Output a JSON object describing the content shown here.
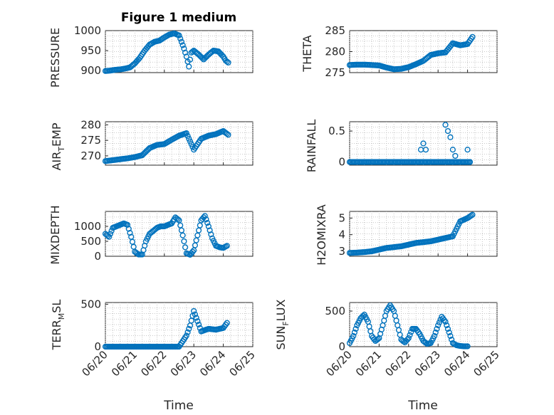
{
  "chart_data": [
    {
      "type": "scatter",
      "id": "pressure",
      "title": "Figure 1 medium",
      "ylabel": "PRESSURE",
      "ylim": [
        895,
        1000
      ],
      "yticks": [
        900,
        950,
        1000
      ],
      "ytick_labels": [
        "900",
        "950",
        "1000"
      ],
      "xlim": [
        "06/20",
        "06/24.2"
      ],
      "grid": true,
      "color": "#0072BD",
      "x": [
        "06/20 00:00",
        "06/20 04:00",
        "06/20 08:00",
        "06/20 12:00",
        "06/20 16:00",
        "06/20 20:00",
        "06/21 00:00",
        "06/21 04:00",
        "06/21 08:00",
        "06/21 12:00",
        "06/21 16:00",
        "06/21 20:00",
        "06/22 00:00",
        "06/22 04:00",
        "06/22 08:00",
        "06/22 12:00",
        "06/22 14:00",
        "06/22 16:00",
        "06/22 18:00",
        "06/22 20:00",
        "06/22 22:00",
        "06/23 00:00",
        "06/23 04:00",
        "06/23 08:00",
        "06/23 12:00",
        "06/23 16:00",
        "06/23 20:00",
        "06/24 00:00",
        "06/24 02:00",
        "06/24 04:00"
      ],
      "values": [
        899,
        900,
        902,
        903,
        905,
        908,
        918,
        932,
        950,
        965,
        972,
        975,
        983,
        990,
        993,
        988,
        972,
        955,
        935,
        910,
        945,
        950,
        940,
        928,
        940,
        950,
        948,
        935,
        925,
        920
      ]
    },
    {
      "type": "scatter",
      "id": "theta",
      "ylabel": "THETA",
      "ylim": [
        275,
        285
      ],
      "yticks": [
        275,
        280,
        285
      ],
      "ytick_labels": [
        "275",
        "280",
        "285"
      ],
      "xlim": [
        "06/20",
        "06/24.2"
      ],
      "grid": true,
      "color": "#0072BD",
      "x": [
        "06/20 00:00",
        "06/20 06:00",
        "06/20 12:00",
        "06/20 18:00",
        "06/21 00:00",
        "06/21 06:00",
        "06/21 12:00",
        "06/21 18:00",
        "06/22 00:00",
        "06/22 06:00",
        "06/22 12:00",
        "06/22 18:00",
        "06/23 00:00",
        "06/23 06:00",
        "06/23 12:00",
        "06/23 18:00",
        "06/24 00:00",
        "06/24 04:00"
      ],
      "values": [
        276.8,
        276.9,
        276.9,
        276.8,
        276.7,
        276.2,
        275.8,
        275.9,
        276.3,
        277.0,
        277.8,
        279.2,
        279.6,
        279.8,
        282.0,
        281.5,
        281.8,
        283.5
      ]
    },
    {
      "type": "scatter",
      "id": "air_temp",
      "ylabel": "AIR_TEMP",
      "ylim": [
        267,
        281
      ],
      "yticks": [
        270,
        275,
        280
      ],
      "ytick_labels": [
        "270",
        "275",
        "280"
      ],
      "xlim": [
        "06/20",
        "06/24.2"
      ],
      "grid": true,
      "color": "#0072BD",
      "x": [
        "06/20 00:00",
        "06/20 06:00",
        "06/20 12:00",
        "06/20 18:00",
        "06/21 00:00",
        "06/21 06:00",
        "06/21 12:00",
        "06/21 18:00",
        "06/22 00:00",
        "06/22 06:00",
        "06/22 12:00",
        "06/22 18:00",
        "06/23 00:00",
        "06/23 06:00",
        "06/23 12:00",
        "06/23 18:00",
        "06/24 00:00",
        "06/24 04:00"
      ],
      "values": [
        268.3,
        268.6,
        268.9,
        269.2,
        269.6,
        270.2,
        272.5,
        273.5,
        273.8,
        275.2,
        276.5,
        277.3,
        272.0,
        275.5,
        276.5,
        277.0,
        278.0,
        276.8
      ]
    },
    {
      "type": "scatter",
      "id": "rainfall",
      "ylabel": "RAINFALL",
      "ylim": [
        -0.05,
        0.65
      ],
      "yticks": [
        0,
        0.5
      ],
      "ytick_labels": [
        "0",
        "0.5"
      ],
      "xlim": [
        "06/20",
        "06/24.2"
      ],
      "grid": true,
      "color": "#0072BD",
      "x": [
        "06/22 10:00",
        "06/22 12:00",
        "06/22 14:00",
        "06/23 06:00",
        "06/23 08:00",
        "06/23 10:00",
        "06/23 12:00",
        "06/23 14:00",
        "06/24 00:00",
        "06/24 02:00"
      ],
      "values": [
        0.2,
        0.3,
        0.2,
        0.6,
        0.5,
        0.4,
        0.2,
        0.1,
        0.2,
        0.0
      ],
      "baseline_zero": true
    },
    {
      "type": "scatter",
      "id": "mixdepth",
      "ylabel": "MIXDEPTH",
      "ylim": [
        0,
        1500
      ],
      "yticks": [
        0,
        500,
        1000
      ],
      "ytick_labels": [
        "0",
        "500",
        "1000"
      ],
      "xlim": [
        "06/20",
        "06/24.2"
      ],
      "grid": true,
      "color": "#0072BD",
      "x": [
        "06/20 00:00",
        "06/20 03:00",
        "06/20 06:00",
        "06/20 09:00",
        "06/20 12:00",
        "06/20 15:00",
        "06/20 18:00",
        "06/20 21:00",
        "06/21 00:00",
        "06/21 03:00",
        "06/21 06:00",
        "06/21 09:00",
        "06/21 12:00",
        "06/21 15:00",
        "06/21 18:00",
        "06/21 21:00",
        "06/22 00:00",
        "06/22 03:00",
        "06/22 06:00",
        "06/22 09:00",
        "06/22 12:00",
        "06/22 15:00",
        "06/22 18:00",
        "06/22 21:00",
        "06/23 00:00",
        "06/23 03:00",
        "06/23 06:00",
        "06/23 09:00",
        "06/23 12:00",
        "06/23 15:00",
        "06/23 18:00",
        "06/23 21:00",
        "06/24 00:00",
        "06/24 03:00"
      ],
      "values": [
        750,
        650,
        950,
        1000,
        1050,
        1100,
        1050,
        650,
        150,
        60,
        60,
        500,
        750,
        850,
        950,
        1000,
        1000,
        1050,
        1100,
        1300,
        1200,
        700,
        100,
        50,
        200,
        700,
        1200,
        1350,
        1000,
        600,
        350,
        300,
        280,
        350
      ]
    },
    {
      "type": "scatter",
      "id": "h2omixra",
      "ylabel": "H2OMIXRA",
      "ylim": [
        2.7,
        5.4
      ],
      "yticks": [
        3,
        4,
        5
      ],
      "ytick_labels": [
        "3",
        "4",
        "5"
      ],
      "xlim": [
        "06/20",
        "06/24.2"
      ],
      "grid": true,
      "color": "#0072BD",
      "x": [
        "06/20 00:00",
        "06/20 06:00",
        "06/20 12:00",
        "06/20 18:00",
        "06/21 00:00",
        "06/21 06:00",
        "06/21 12:00",
        "06/21 18:00",
        "06/22 00:00",
        "06/22 06:00",
        "06/22 12:00",
        "06/22 18:00",
        "06/23 00:00",
        "06/23 06:00",
        "06/23 12:00",
        "06/23 18:00",
        "06/24 00:00",
        "06/24 04:00"
      ],
      "values": [
        2.9,
        2.92,
        2.95,
        3.0,
        3.1,
        3.2,
        3.25,
        3.3,
        3.4,
        3.5,
        3.55,
        3.6,
        3.7,
        3.8,
        3.9,
        4.8,
        5.0,
        5.2
      ]
    },
    {
      "type": "scatter",
      "id": "terr_msl",
      "ylabel": "TERR_MSL",
      "ylim": [
        0,
        520
      ],
      "yticks": [
        0,
        500
      ],
      "ytick_labels": [
        "0",
        "500"
      ],
      "xlim": [
        "06/20",
        "06/25"
      ],
      "xticks": [
        "06/20",
        "06/21",
        "06/22",
        "06/23",
        "06/24",
        "06/25"
      ],
      "grid": true,
      "color": "#0072BD",
      "x": [
        "06/20 00:00",
        "06/20 06:00",
        "06/20 12:00",
        "06/20 18:00",
        "06/21 00:00",
        "06/21 06:00",
        "06/21 12:00",
        "06/21 18:00",
        "06/22 00:00",
        "06/22 06:00",
        "06/22 12:00",
        "06/22 18:00",
        "06/22 21:00",
        "06/23 00:00",
        "06/23 03:00",
        "06/23 06:00",
        "06/23 12:00",
        "06/23 18:00",
        "06/24 00:00",
        "06/24 03:00"
      ],
      "values": [
        0,
        0,
        0,
        0,
        0,
        0,
        0,
        0,
        0,
        0,
        0,
        130,
        250,
        420,
        300,
        180,
        210,
        200,
        220,
        280
      ]
    },
    {
      "type": "scatter",
      "id": "sun_flux",
      "ylabel": "SUN_FLUX",
      "ylim": [
        0,
        620
      ],
      "yticks": [
        0,
        500
      ],
      "ytick_labels": [
        "0",
        "500"
      ],
      "xlim": [
        "06/20",
        "06/25"
      ],
      "xticks": [
        "06/20",
        "06/21",
        "06/22",
        "06/23",
        "06/24",
        "06/25"
      ],
      "grid": true,
      "color": "#0072BD",
      "x": [
        "06/20 00:00",
        "06/20 03:00",
        "06/20 06:00",
        "06/20 09:00",
        "06/20 12:00",
        "06/20 15:00",
        "06/20 18:00",
        "06/20 21:00",
        "06/21 00:00",
        "06/21 03:00",
        "06/21 06:00",
        "06/21 09:00",
        "06/21 12:00",
        "06/21 15:00",
        "06/21 18:00",
        "06/21 21:00",
        "06/22 00:00",
        "06/22 03:00",
        "06/22 06:00",
        "06/22 09:00",
        "06/22 12:00",
        "06/22 15:00",
        "06/22 18:00",
        "06/22 21:00",
        "06/23 00:00",
        "06/23 03:00",
        "06/23 06:00",
        "06/23 09:00",
        "06/23 12:00",
        "06/23 15:00",
        "06/23 18:00",
        "06/23 21:00",
        "06/24 00:00"
      ],
      "values": [
        50,
        150,
        300,
        400,
        450,
        350,
        150,
        80,
        120,
        300,
        500,
        580,
        500,
        300,
        100,
        60,
        120,
        250,
        250,
        180,
        80,
        40,
        50,
        150,
        300,
        420,
        350,
        200,
        50,
        20,
        10,
        5,
        5
      ]
    }
  ],
  "labels": {
    "title": "Figure 1 medium",
    "ylabel_pressure": "PRESSURE",
    "ylabel_theta": "THETA",
    "ylabel_air_main": "AIR",
    "ylabel_air_sub": "T",
    "ylabel_air_rest": "EMP",
    "ylabel_rainfall": "RAINFALL",
    "ylabel_mixdepth": "MIXDEPTH",
    "ylabel_h2o": "H2OMIXRA",
    "ylabel_terr_main": "TERR",
    "ylabel_terr_sub": "M",
    "ylabel_terr_rest": "SL",
    "ylabel_sun_main": "SUN",
    "ylabel_sun_sub": "F",
    "ylabel_sun_rest": "LUX",
    "xlabel_left": "Time",
    "xlabel_right": "Time"
  }
}
